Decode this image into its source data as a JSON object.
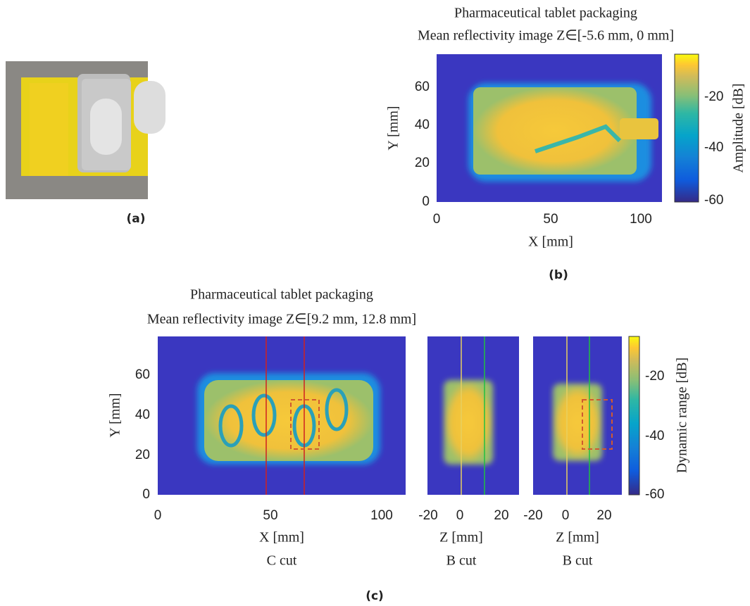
{
  "panel_a": {
    "caption": "(a)"
  },
  "panel_b": {
    "title": [
      "Pharmaceutical tablet packaging",
      "Mean reflectivity image Z∈[-5.6 mm, 0 mm]"
    ],
    "xlabel": "X [mm]",
    "ylabel": "Y [mm]",
    "xticks": [
      "0",
      "50",
      "100"
    ],
    "yticks": [
      "0",
      "20",
      "40",
      "60"
    ],
    "colorbar_label": "Amplitude [dB]",
    "colorbar_ticks": [
      "-20",
      "-40",
      "-60"
    ],
    "caption": "(b)"
  },
  "panel_c": {
    "title": [
      "Pharmaceutical tablet packaging",
      "Mean reflectivity image Z∈[9.2 mm, 12.8 mm]"
    ],
    "ylabel": "Y [mm]",
    "yticks": [
      "0",
      "20",
      "40",
      "60"
    ],
    "plots": [
      {
        "xlabel": "X [mm]",
        "subtitle": "C cut",
        "xticks": [
          "0",
          "50",
          "100"
        ]
      },
      {
        "xlabel": "Z [mm]",
        "subtitle": "B cut",
        "xticks": [
          "-20",
          "0",
          "20"
        ]
      },
      {
        "xlabel": "Z [mm]",
        "subtitle": "B cut",
        "xticks": [
          "-20",
          "0",
          "20"
        ]
      }
    ],
    "colorbar_label": "Dynamic range [dB]",
    "colorbar_ticks": [
      "-20",
      "-40",
      "-60"
    ],
    "caption": "(c)"
  }
}
